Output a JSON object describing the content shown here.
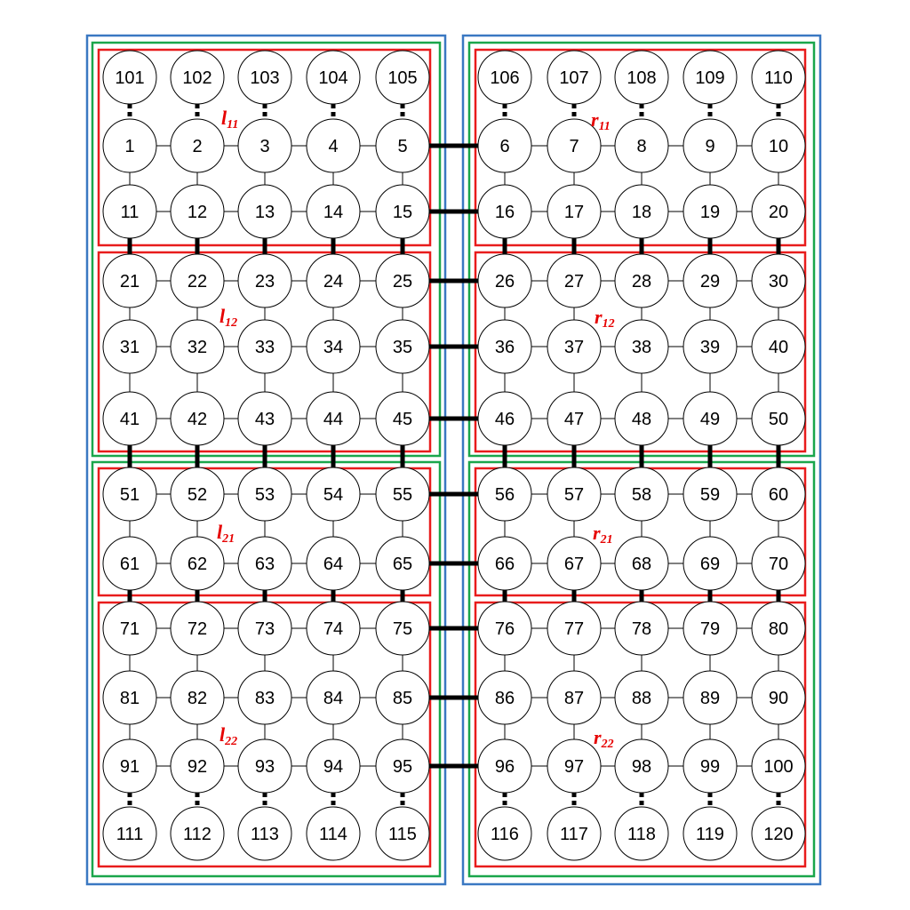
{
  "colors": {
    "outer_box": "#3a78c2",
    "mid_box": "#1aa64b",
    "region_box": "#e81c1c",
    "region_label": "#e60000",
    "node_stroke": "#000000",
    "node_fill": "#ffffff",
    "edge": "#000000"
  },
  "grid": {
    "rows": [
      [
        101,
        102,
        103,
        104,
        105,
        106,
        107,
        108,
        109,
        110
      ],
      [
        1,
        2,
        3,
        4,
        5,
        6,
        7,
        8,
        9,
        10
      ],
      [
        11,
        12,
        13,
        14,
        15,
        16,
        17,
        18,
        19,
        20
      ],
      [
        21,
        22,
        23,
        24,
        25,
        26,
        27,
        28,
        29,
        30
      ],
      [
        31,
        32,
        33,
        34,
        35,
        36,
        37,
        38,
        39,
        40
      ],
      [
        41,
        42,
        43,
        44,
        45,
        46,
        47,
        48,
        49,
        50
      ],
      [
        51,
        52,
        53,
        54,
        55,
        56,
        57,
        58,
        59,
        60
      ],
      [
        61,
        62,
        63,
        64,
        65,
        66,
        67,
        68,
        69,
        70
      ],
      [
        71,
        72,
        73,
        74,
        75,
        76,
        77,
        78,
        79,
        80
      ],
      [
        81,
        82,
        83,
        84,
        85,
        86,
        87,
        88,
        89,
        90
      ],
      [
        91,
        92,
        93,
        94,
        95,
        96,
        97,
        98,
        99,
        100
      ],
      [
        111,
        112,
        113,
        114,
        115,
        116,
        117,
        118,
        119,
        120
      ]
    ]
  },
  "regions": [
    {
      "id": "l11",
      "letter": "l",
      "sub": "11"
    },
    {
      "id": "r11",
      "letter": "r",
      "sub": "11"
    },
    {
      "id": "l12",
      "letter": "l",
      "sub": "12"
    },
    {
      "id": "r12",
      "letter": "r",
      "sub": "12"
    },
    {
      "id": "l21",
      "letter": "l",
      "sub": "21"
    },
    {
      "id": "r21",
      "letter": "r",
      "sub": "21"
    },
    {
      "id": "l22",
      "letter": "l",
      "sub": "22"
    },
    {
      "id": "r22",
      "letter": "r",
      "sub": "22"
    }
  ]
}
